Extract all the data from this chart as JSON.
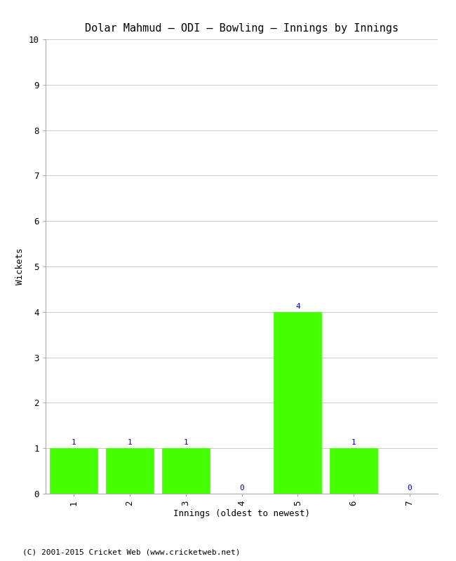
{
  "title": "Dolar Mahmud – ODI – Bowling – Innings by Innings",
  "xlabel": "Innings (oldest to newest)",
  "ylabel": "Wickets",
  "categories": [
    "1",
    "2",
    "3",
    "4",
    "5",
    "6",
    "7"
  ],
  "values": [
    1,
    1,
    1,
    0,
    4,
    1,
    0
  ],
  "bar_color": "#44ff00",
  "bar_edge_color": "#44ff00",
  "ylim": [
    0,
    10
  ],
  "yticks": [
    0,
    1,
    2,
    3,
    4,
    5,
    6,
    7,
    8,
    9,
    10
  ],
  "label_color": "#0000cc",
  "grid_color": "#cccccc",
  "background_color": "#ffffff",
  "title_fontsize": 11,
  "axis_label_fontsize": 9,
  "tick_fontsize": 9,
  "bar_label_fontsize": 8,
  "footer_text": "(C) 2001-2015 Cricket Web (www.cricketweb.net)",
  "footer_fontsize": 8
}
